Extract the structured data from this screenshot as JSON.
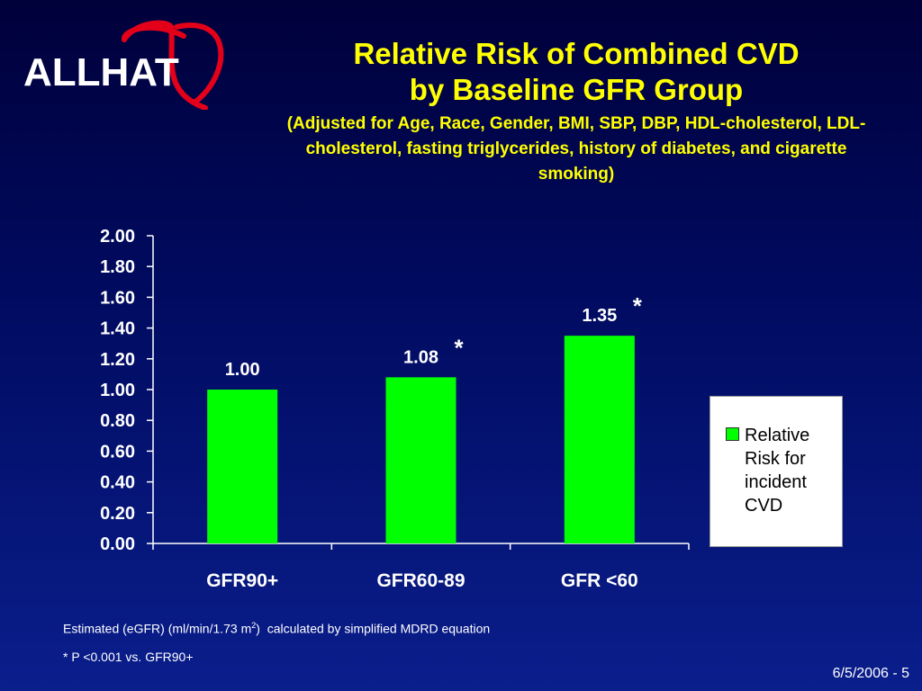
{
  "logo": {
    "text": "ALLHAT",
    "heart_color": "#e5001a"
  },
  "title": {
    "line1": "Relative Risk of Combined CVD",
    "line2": "by Baseline GFR Group",
    "subtitle": "(Adjusted for Age, Race, Gender, BMI, SBP, DBP, HDL-cholesterol, LDL-cholesterol, fasting triglycerides, history of diabetes, and cigarette smoking)"
  },
  "chart_data": {
    "type": "bar",
    "categories": [
      "GFR90+",
      "GFR60-89",
      "GFR <60"
    ],
    "series": [
      {
        "name": "Relative Risk for incident CVD",
        "values": [
          1.0,
          1.08,
          1.35
        ],
        "color": "#00ff00"
      }
    ],
    "data_labels": [
      "1.00",
      "1.08",
      "1.35"
    ],
    "significance_markers": [
      "",
      "*",
      "*"
    ],
    "ylim": [
      0,
      2.0
    ],
    "yticks": [
      "0.00",
      "0.20",
      "0.40",
      "0.60",
      "0.80",
      "1.00",
      "1.20",
      "1.40",
      "1.60",
      "1.80",
      "2.00"
    ],
    "grid": false,
    "legend_position": "right"
  },
  "footnotes": {
    "line1_pre": "Estimated (eGFR) (ml/min/1.73 m",
    "line1_sup": "2",
    "line1_post": ")  calculated by simplified MDRD equation",
    "line2": "* P <0.001 vs. GFR90+"
  },
  "slide_number": "6/5/2006 - 5"
}
